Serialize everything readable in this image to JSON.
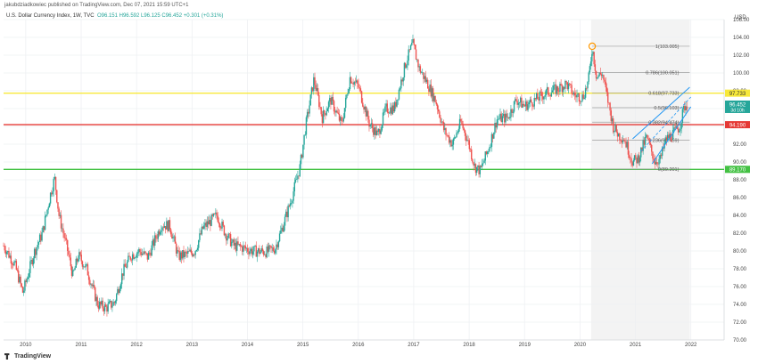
{
  "header": {
    "publisher": "jakubdziadkowiec published on TradingView.com, Dec 07, 2021 15:59 UTC+1",
    "symbol": "U.S. Dollar Currency Index, 1W, TVC",
    "o": "O96.151",
    "h": "H96.592",
    "l": "L96.125",
    "c": "C96.452",
    "change": "+0.301 (+0.31%)"
  },
  "footer": {
    "brand": "TradingView"
  },
  "chart_data": {
    "type": "candlestick",
    "currency": "USD",
    "ylim": [
      70,
      106
    ],
    "y_ticks": [
      70,
      72,
      74,
      76,
      78,
      80,
      82,
      84,
      86,
      88,
      90,
      92,
      94,
      96,
      98,
      100,
      102,
      104,
      106
    ],
    "x_range": [
      2009.6,
      2022.6
    ],
    "x_ticks": [
      "2010",
      "2011",
      "2012",
      "2013",
      "2014",
      "2015",
      "2016",
      "2017",
      "2018",
      "2019",
      "2020",
      "2021",
      "2022"
    ],
    "close_path": [
      [
        2009.6,
        80.6
      ],
      [
        2009.8,
        78.5
      ],
      [
        2009.95,
        75.3
      ],
      [
        2010.15,
        79.8
      ],
      [
        2010.3,
        82.0
      ],
      [
        2010.45,
        86.5
      ],
      [
        2010.52,
        88.2
      ],
      [
        2010.6,
        84.0
      ],
      [
        2010.75,
        80.2
      ],
      [
        2010.85,
        77.2
      ],
      [
        2010.95,
        79.5
      ],
      [
        2011.1,
        78.0
      ],
      [
        2011.3,
        74.0
      ],
      [
        2011.45,
        73.6
      ],
      [
        2011.6,
        74.2
      ],
      [
        2011.75,
        77.6
      ],
      [
        2011.9,
        79.5
      ],
      [
        2012.05,
        80.0
      ],
      [
        2012.2,
        79.3
      ],
      [
        2012.45,
        83.0
      ],
      [
        2012.6,
        82.8
      ],
      [
        2012.75,
        79.4
      ],
      [
        2012.9,
        79.6
      ],
      [
        2013.05,
        80.0
      ],
      [
        2013.2,
        82.6
      ],
      [
        2013.45,
        84.0
      ],
      [
        2013.6,
        82.0
      ],
      [
        2013.75,
        80.6
      ],
      [
        2013.9,
        80.4
      ],
      [
        2014.1,
        80.0
      ],
      [
        2014.35,
        79.9
      ],
      [
        2014.5,
        80.3
      ],
      [
        2014.65,
        83.0
      ],
      [
        2014.8,
        86.0
      ],
      [
        2014.95,
        89.5
      ],
      [
        2015.05,
        94.0
      ],
      [
        2015.2,
        99.3
      ],
      [
        2015.35,
        95.0
      ],
      [
        2015.5,
        97.0
      ],
      [
        2015.7,
        94.2
      ],
      [
        2015.85,
        99.5
      ],
      [
        2016.0,
        98.5
      ],
      [
        2016.2,
        94.3
      ],
      [
        2016.35,
        93.0
      ],
      [
        2016.5,
        96.0
      ],
      [
        2016.65,
        96.0
      ],
      [
        2016.85,
        101.0
      ],
      [
        2016.98,
        103.3
      ],
      [
        2017.1,
        100.5
      ],
      [
        2017.25,
        98.8
      ],
      [
        2017.4,
        96.8
      ],
      [
        2017.55,
        93.5
      ],
      [
        2017.7,
        92.0
      ],
      [
        2017.85,
        94.5
      ],
      [
        2017.98,
        92.3
      ],
      [
        2018.1,
        89.5
      ],
      [
        2018.2,
        89.0
      ],
      [
        2018.35,
        91.5
      ],
      [
        2018.5,
        94.8
      ],
      [
        2018.7,
        95.0
      ],
      [
        2018.85,
        97.0
      ],
      [
        2019.0,
        96.3
      ],
      [
        2019.2,
        97.0
      ],
      [
        2019.4,
        97.8
      ],
      [
        2019.6,
        98.2
      ],
      [
        2019.75,
        98.8
      ],
      [
        2019.9,
        97.5
      ],
      [
        2020.05,
        97.3
      ],
      [
        2020.15,
        99.0
      ],
      [
        2020.22,
        102.9
      ],
      [
        2020.3,
        99.5
      ],
      [
        2020.4,
        100.0
      ],
      [
        2020.5,
        97.0
      ],
      [
        2020.6,
        94.0
      ],
      [
        2020.7,
        93.0
      ],
      [
        2020.8,
        92.6
      ],
      [
        2020.95,
        90.0
      ],
      [
        2021.05,
        90.4
      ],
      [
        2021.2,
        92.8
      ],
      [
        2021.35,
        90.1
      ],
      [
        2021.45,
        90.3
      ],
      [
        2021.55,
        92.5
      ],
      [
        2021.7,
        93.3
      ],
      [
        2021.8,
        94.0
      ],
      [
        2021.88,
        96.2
      ],
      [
        2021.93,
        96.45
      ]
    ],
    "fibonacci": [
      {
        "level": "1(103.005)",
        "value": 103.005
      },
      {
        "level": "0.786(100.051)",
        "value": 100.051
      },
      {
        "level": "0.618(97.733)",
        "value": 97.733
      },
      {
        "level": "0.5(96.103)",
        "value": 96.103
      },
      {
        "level": "0.382(94.474)",
        "value": 94.474
      },
      {
        "level": "0.236(92.459)",
        "value": 92.459
      },
      {
        "level": "0(89.201)",
        "value": 89.201
      }
    ],
    "horizontal_lines": [
      {
        "value": 97.733,
        "color": "#f7e83a",
        "label": "97.733"
      },
      {
        "value": 94.19,
        "color": "#e53935",
        "label": "94.190"
      },
      {
        "value": 89.17,
        "color": "#43c143",
        "label": "89.170"
      }
    ],
    "price_label": {
      "value": 96.452,
      "text": "96.452",
      "sub": "3d 10h"
    },
    "channel": {
      "upper": [
        [
          2020.95,
          92.6
        ],
        [
          2021.98,
          98.4
        ]
      ],
      "lower": [
        [
          2021.3,
          89.8
        ],
        [
          2022.0,
          96.2
        ]
      ]
    },
    "shaded_range": [
      2020.2,
      2021.98
    ],
    "colors": {
      "up": "#26a69a",
      "down": "#ef5350",
      "grid": "#eef0f3",
      "fib": "#9e9e9e",
      "channel": "#2196f3"
    }
  }
}
